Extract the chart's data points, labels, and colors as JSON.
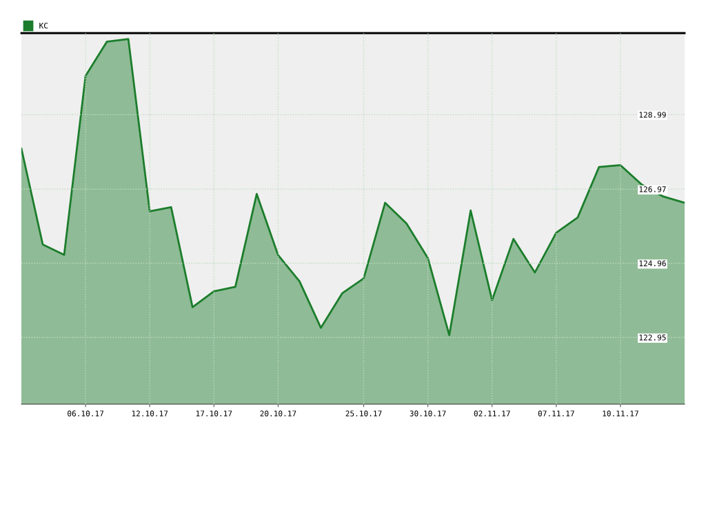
{
  "chart_data": {
    "type": "area",
    "categories": [
      null,
      null,
      null,
      "06.10.17",
      null,
      null,
      "12.10.17",
      null,
      null,
      "17.10.17",
      null,
      null,
      "20.10.17",
      null,
      null,
      null,
      "25.10.17",
      null,
      null,
      "30.10.17",
      null,
      null,
      "02.11.17",
      null,
      null,
      "07.11.17",
      null,
      null,
      "10.11.17",
      null,
      null,
      null
    ],
    "series": [
      {
        "name": "КС",
        "color": "#1b7d2b",
        "values": [
          128.07,
          125.47,
          125.19,
          130.04,
          130.97,
          131.04,
          126.37,
          126.48,
          123.77,
          124.2,
          124.32,
          126.84,
          125.18,
          124.47,
          123.21,
          124.15,
          124.55,
          126.6,
          126.04,
          125.1,
          123.01,
          126.39,
          123.96,
          125.62,
          124.71,
          125.79,
          126.2,
          127.57,
          127.62,
          127.09,
          126.77,
          126.6
        ]
      }
    ],
    "ylim": [
      121.14,
      131.2
    ],
    "yticks": [
      122.95,
      124.96,
      126.97,
      128.99
    ],
    "grid": true,
    "legend": "top left"
  }
}
